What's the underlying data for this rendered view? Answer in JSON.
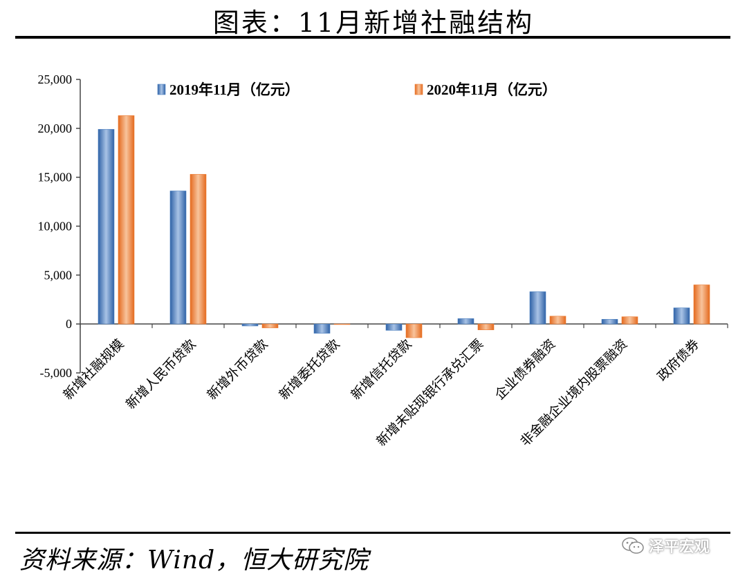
{
  "page": {
    "title": "图表：11月新增社融结构",
    "source": "资料来源：Wind，恒大研究院",
    "watermark": "泽平宏观",
    "watermark_icon": "wechat-icon"
  },
  "colors": {
    "series_2019": "#4a7fc0",
    "series_2019_light": "#a9c3e6",
    "series_2020": "#ec7a30",
    "series_2020_light": "#f8c49c",
    "axis": "#444444"
  },
  "chart_data": {
    "type": "bar",
    "title": "",
    "xlabel": "",
    "ylabel": "",
    "ylim": [
      -5000,
      25000
    ],
    "yticks": [
      -5000,
      0,
      5000,
      10000,
      15000,
      20000,
      25000
    ],
    "ytick_labels": [
      "-5,000",
      "0",
      "5,000",
      "10,000",
      "15,000",
      "20,000",
      "25,000"
    ],
    "grid": false,
    "legend_position": "top",
    "categories": [
      "新增社融规模",
      "新增人民币贷款",
      "新增外币贷款",
      "新增委托贷款",
      "新增信托贷款",
      "新增未贴现银行承兑汇票",
      "企业债券融资",
      "非金融企业境内股票融资",
      "政府债券"
    ],
    "series": [
      {
        "name": "2019年11月（亿元）",
        "values": [
          19900,
          13600,
          -200,
          -950,
          -650,
          550,
          3300,
          480,
          1650
        ]
      },
      {
        "name": "2020年11月（亿元）",
        "values": [
          21300,
          15300,
          -400,
          -10,
          -1400,
          -600,
          800,
          740,
          4000
        ]
      }
    ]
  }
}
